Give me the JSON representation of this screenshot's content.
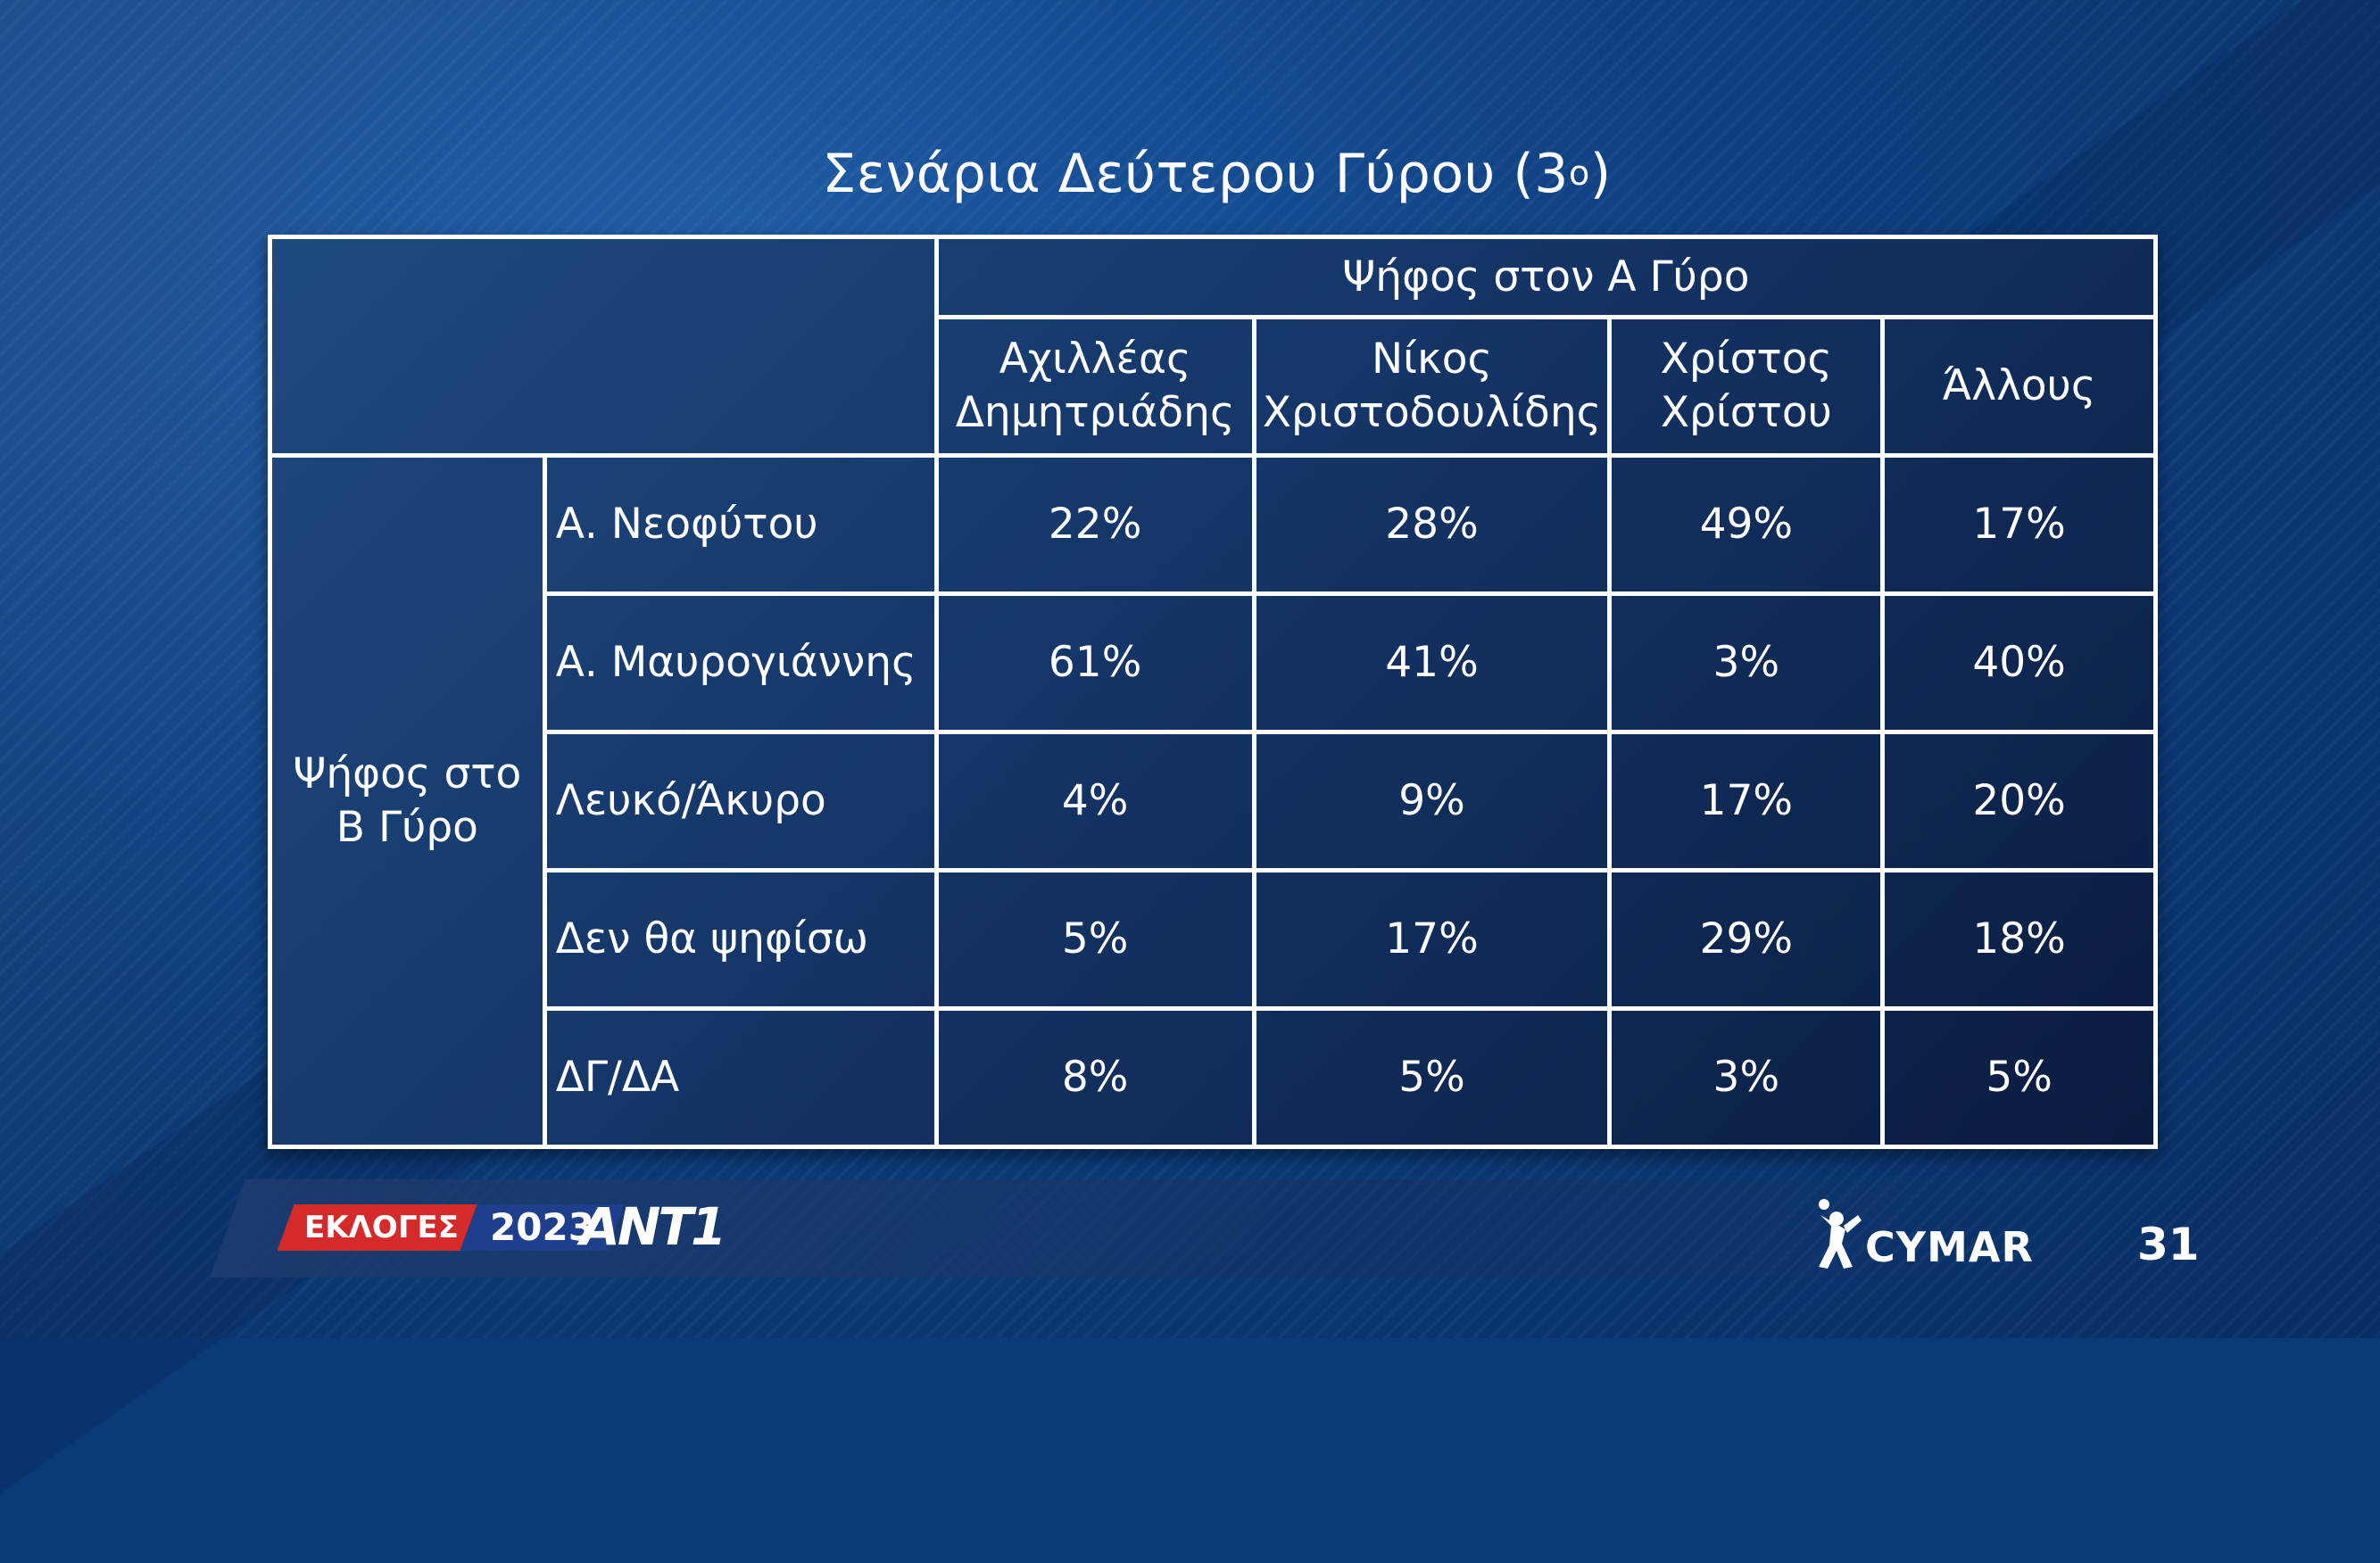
{
  "slide": {
    "title": "Σενάρια Δεύτερου Γύρου (3",
    "title_superscript": "ο",
    "title_close": ")",
    "page_number": "31"
  },
  "table": {
    "group_header": "Ψήφος στον Α Γύρο",
    "row_group_label": "Ψήφος στο Β Γύρο",
    "columns": [
      "Αχιλλέας Δημητριάδης",
      "Νίκος Χριστοδουλίδης",
      "Χρίστος Χρίστου",
      "Άλλους"
    ],
    "rows": [
      {
        "label": "Α. Νεοφύτου",
        "values": [
          "22%",
          "28%",
          "49%",
          "17%"
        ]
      },
      {
        "label": "Α. Μαυρογιάννης",
        "values": [
          "61%",
          "41%",
          "3%",
          "40%"
        ]
      },
      {
        "label": "Λευκό/Άκυρο",
        "values": [
          "4%",
          "9%",
          "17%",
          "20%"
        ]
      },
      {
        "label": "Δεν θα ψηφίσω",
        "values": [
          "5%",
          "17%",
          "29%",
          "18%"
        ]
      },
      {
        "label": "ΔΓ/ΔΑ",
        "values": [
          "8%",
          "5%",
          "3%",
          "5%"
        ]
      }
    ]
  },
  "footer": {
    "election_label": "ΕΚΛΟΓΕΣ",
    "election_year": "2023",
    "channel": "ANT1",
    "pollster": "CYMAR"
  },
  "colors": {
    "background": "#0b3a78",
    "table_border": "#ffffff",
    "logo_red": "#d42a2a",
    "logo_blue": "#1d3f8c"
  },
  "icons": {
    "pollster_mark": "cymar-figure-icon"
  }
}
